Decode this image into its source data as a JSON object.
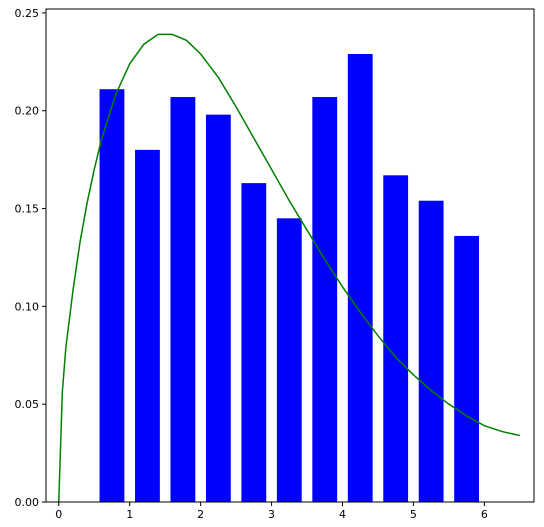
{
  "chart_data": {
    "type": "bar",
    "title": "",
    "xlabel": "",
    "ylabel": "",
    "xlim": [
      -0.18,
      6.7
    ],
    "ylim": [
      0,
      0.252
    ],
    "grid": false,
    "legend": "none",
    "x_ticks": [
      0,
      1,
      2,
      3,
      4,
      5,
      6
    ],
    "x_tick_labels": [
      "0",
      "1",
      "2",
      "3",
      "4",
      "5",
      "6"
    ],
    "y_ticks": [
      0,
      0.05,
      0.1,
      0.15,
      0.2,
      0.25
    ],
    "y_tick_labels": [
      "0.00",
      "0.05",
      "0.10",
      "0.15",
      "0.20",
      "0.25"
    ],
    "bars": {
      "color": "#0000ff",
      "width": 0.35,
      "x": [
        0.75,
        1.25,
        1.75,
        2.25,
        2.75,
        3.25,
        3.75,
        4.25,
        4.75,
        5.25,
        5.75
      ],
      "values": [
        0.211,
        0.18,
        0.207,
        0.198,
        0.163,
        0.145,
        0.207,
        0.229,
        0.167,
        0.154,
        0.136
      ]
    },
    "curve": {
      "type": "line",
      "color": "#008000",
      "x": [
        0,
        0.05,
        0.1,
        0.2,
        0.3,
        0.4,
        0.5,
        0.6,
        0.8,
        1.0,
        1.2,
        1.4,
        1.6,
        1.8,
        2.0,
        2.25,
        2.5,
        2.75,
        3.0,
        3.25,
        3.5,
        3.75,
        4.0,
        4.25,
        4.5,
        4.75,
        5.0,
        5.25,
        5.5,
        5.75,
        6.0,
        6.25,
        6.5
      ],
      "y": [
        0,
        0.056,
        0.079,
        0.108,
        0.133,
        0.153,
        0.17,
        0.185,
        0.208,
        0.224,
        0.234,
        0.239,
        0.239,
        0.236,
        0.229,
        0.217,
        0.202,
        0.186,
        0.17,
        0.154,
        0.139,
        0.124,
        0.11,
        0.097,
        0.085,
        0.074,
        0.065,
        0.057,
        0.05,
        0.044,
        0.039,
        0.036,
        0.034
      ]
    }
  }
}
